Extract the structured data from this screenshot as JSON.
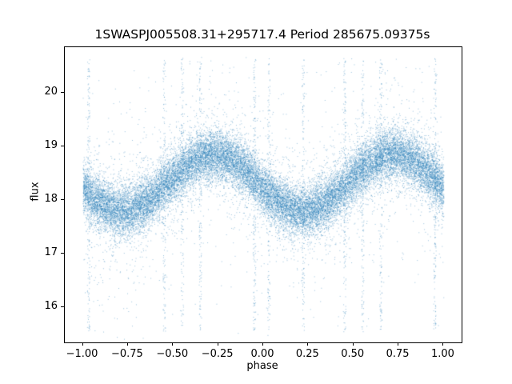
{
  "chart_data": {
    "type": "scatter",
    "title": "1SWASPJ005508.31+295717.4 Period 285675.09375s",
    "xlabel": "phase",
    "ylabel": "flux",
    "xlim": [
      -1.1,
      1.1
    ],
    "ylim": [
      15.35,
      20.85
    ],
    "xticks": [
      -1.0,
      -0.75,
      -0.5,
      -0.25,
      0.0,
      0.25,
      0.5,
      0.75,
      1.0
    ],
    "xtick_labels": [
      "−1.00",
      "−0.75",
      "−0.50",
      "−0.25",
      "0.00",
      "0.25",
      "0.50",
      "0.75",
      "1.00"
    ],
    "yticks": [
      16,
      17,
      18,
      19,
      20
    ],
    "ytick_labels": [
      "16",
      "17",
      "18",
      "19",
      "20"
    ],
    "grid": false,
    "legend": null,
    "marker_color": "#1f77b4",
    "marker_alpha": 0.45,
    "marker_size_px": 1,
    "model": {
      "kind": "phase_folded_sinusoid_scatter",
      "description": "Dense phase-folded light curve plotted over two cycles (phase -1 to 1); flux oscillates sinusoidally with maxima near phase -0.28 and 0.72 (flux ~18.9) and minima near phase -0.78 and 0.22 (flux ~17.8), with heavy photometric scatter and vertical outlier streaks reaching ~15.5 to ~20.7.",
      "mean_flux": 18.33,
      "amplitude": 0.53,
      "peak_phase": 0.72,
      "n_points": 27000,
      "core_sigma": 0.23,
      "mid_sigma": 0.5,
      "outlier_sigma": 1.25,
      "mid_fraction": 0.12,
      "outlier_fraction": 0.035,
      "n_streak_points": 1500,
      "streak_phases": [
        -0.97,
        -0.55,
        -0.45,
        -0.35,
        -0.05,
        0.03,
        0.22,
        0.45,
        0.55,
        0.65,
        0.95
      ],
      "streak_y_min": 15.55,
      "streak_y_max": 20.65,
      "seed": 42
    }
  }
}
